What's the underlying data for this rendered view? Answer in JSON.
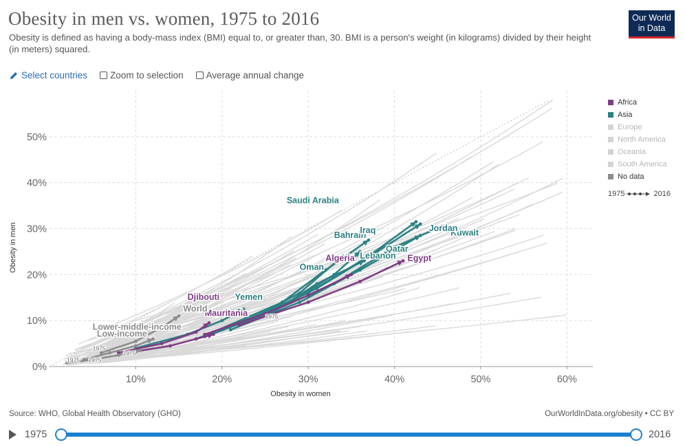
{
  "header": {
    "title": "Obesity in men vs. women, 1975 to 2016",
    "subtitle": "Obesity is defined as having a body-mass index (BMI) equal to, or greater than, 30. BMI is a person's weight (in kilograms) divided by their height (in meters) squared.",
    "logo_line1": "Our World",
    "logo_line2": "in Data"
  },
  "controls": {
    "select_label": "Select countries",
    "zoom_label": "Zoom to selection",
    "avg_label": "Average annual change"
  },
  "legend": {
    "items": [
      {
        "label": "Africa",
        "color": "#7f3b85"
      },
      {
        "label": "Asia",
        "color": "#2c8184"
      },
      {
        "label": "Europe",
        "color": "#d4d4d4"
      },
      {
        "label": "North America",
        "color": "#d4d4d4"
      },
      {
        "label": "Oceania",
        "color": "#d4d4d4"
      },
      {
        "label": "South America",
        "color": "#d4d4d4"
      },
      {
        "label": "No data",
        "color": "#8c8c8c"
      }
    ],
    "time_start": "1975",
    "time_end": "2016"
  },
  "footer": {
    "source": "Source: WHO, Global Health Observatory (GHO)",
    "license": "OurWorldInData.org/obesity • CC BY"
  },
  "timeline": {
    "start": "1975",
    "end": "2016",
    "start_fraction": 0,
    "end_fraction": 1
  },
  "chart_data": {
    "type": "scatter",
    "xlabel": "Obesity in women",
    "ylabel": "Obesity in men",
    "xlim": [
      0,
      63
    ],
    "ylim": [
      0,
      60
    ],
    "xticks": [
      "10%",
      "20%",
      "30%",
      "40%",
      "50%",
      "60%"
    ],
    "yticks": [
      "0%",
      "10%",
      "20%",
      "30%",
      "40%",
      "50%"
    ],
    "grid": true,
    "legend_position": "right",
    "highlighted": [
      {
        "name": "Kuwait",
        "region": "Asia",
        "points": [
          [
            24,
            10.5
          ],
          [
            33,
            18
          ],
          [
            40,
            26
          ],
          [
            45.5,
            30.5
          ]
        ]
      },
      {
        "name": "Qatar",
        "region": "Asia",
        "points": [
          [
            23,
            10
          ],
          [
            31,
            17
          ],
          [
            38,
            25
          ],
          [
            43,
            31
          ]
        ]
      },
      {
        "name": "Saudi Arabia",
        "region": "Asia",
        "points": [
          [
            22,
            9.5
          ],
          [
            30,
            16
          ],
          [
            37,
            24
          ],
          [
            42.5,
            31.5
          ]
        ]
      },
      {
        "name": "Jordan",
        "region": "Asia",
        "points": [
          [
            21,
            8
          ],
          [
            29,
            14
          ],
          [
            36,
            21
          ],
          [
            43,
            28.5
          ]
        ]
      },
      {
        "name": "Lebanon",
        "region": "Asia",
        "points": [
          [
            19,
            7.5
          ],
          [
            27,
            14
          ],
          [
            32,
            21
          ],
          [
            37,
            27.5
          ]
        ]
      },
      {
        "name": "Bahrain",
        "region": "Asia",
        "points": [
          [
            20,
            8
          ],
          [
            28,
            14
          ],
          [
            33,
            20
          ],
          [
            36,
            25
          ]
        ]
      },
      {
        "name": "Iraq",
        "region": "Asia",
        "points": [
          [
            18,
            6.5
          ],
          [
            26,
            12
          ],
          [
            31,
            18
          ],
          [
            36.5,
            23
          ]
        ]
      },
      {
        "name": "Oman",
        "region": "Asia",
        "points": [
          [
            17,
            6
          ],
          [
            24,
            11
          ],
          [
            29,
            16
          ],
          [
            34,
            24
          ]
        ]
      },
      {
        "name": "Yemen",
        "region": "Asia",
        "points": [
          [
            10,
            4
          ],
          [
            16,
            7
          ],
          [
            20,
            10
          ],
          [
            22.5,
            12.5
          ]
        ]
      },
      {
        "name": "Egypt",
        "region": "Africa",
        "points": [
          [
            22,
            9
          ],
          [
            30,
            14
          ],
          [
            36,
            18.5
          ],
          [
            41,
            23
          ]
        ]
      },
      {
        "name": "Algeria",
        "region": "Africa",
        "points": [
          [
            18,
            7
          ],
          [
            25,
            11.5
          ],
          [
            30,
            15.5
          ],
          [
            35,
            20
          ]
        ]
      },
      {
        "name": "Djibouti",
        "region": "Africa",
        "points": [
          [
            8,
            3
          ],
          [
            13,
            5
          ],
          [
            17,
            7.5
          ],
          [
            18.5,
            9.5
          ]
        ]
      },
      {
        "name": "Mauritania",
        "region": "Africa",
        "points": [
          [
            9,
            3
          ],
          [
            14,
            4.5
          ],
          [
            17,
            6
          ],
          [
            19,
            7
          ]
        ]
      },
      {
        "name": "World",
        "region": "No data",
        "points": [
          [
            6,
            3
          ],
          [
            10,
            5.5
          ],
          [
            13,
            8.5
          ],
          [
            15,
            11
          ]
        ]
      },
      {
        "name": "Lower-middle-income",
        "region": "No data",
        "points": [
          [
            4,
            1.5
          ],
          [
            7,
            3
          ],
          [
            10,
            4.5
          ],
          [
            12,
            6
          ]
        ]
      },
      {
        "name": "Low-income",
        "region": "No data",
        "points": [
          [
            2,
            0.8
          ],
          [
            5,
            1.5
          ],
          [
            8,
            2.5
          ],
          [
            10.5,
            3.5
          ]
        ]
      }
    ],
    "year_markers": [
      {
        "label": "1975",
        "x": 5,
        "y": 3.5
      },
      {
        "label": "1975",
        "x": 2,
        "y": 1
      },
      {
        "label": "1975",
        "x": 4.5,
        "y": 1
      },
      {
        "label": "1975",
        "x": 8.5,
        "y": 2.5
      },
      {
        "label": "1975",
        "x": 25,
        "y": 10.5
      }
    ]
  }
}
